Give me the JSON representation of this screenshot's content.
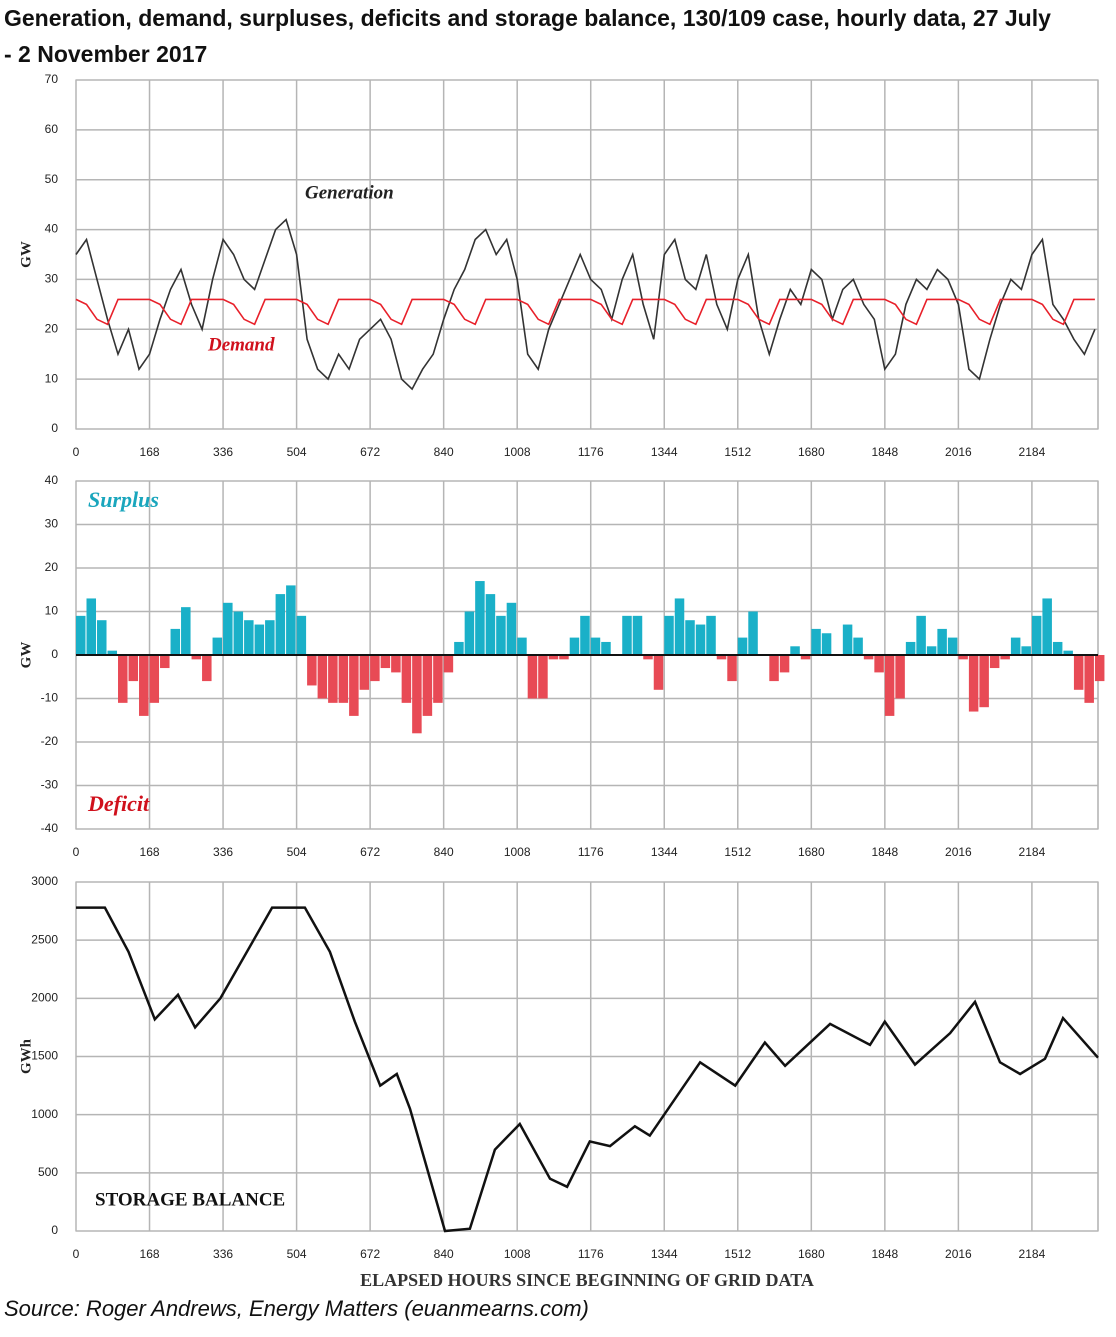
{
  "title": "Generation, demand, surpluses, deficits and storage balance, 130/109 case, hourly data, 27 July - 2 November 2017",
  "source": "Source: Roger Andrews, Energy Matters (euanmearns.com)",
  "chart_data": [
    {
      "type": "line",
      "ylabel": "GW",
      "annotations": [
        "Generation",
        "Demand"
      ],
      "xlim": [
        0,
        2335
      ],
      "xticks": [
        0,
        168,
        336,
        504,
        672,
        840,
        1008,
        1176,
        1344,
        1512,
        1680,
        1848,
        2016,
        2184
      ],
      "ylim": [
        0,
        70
      ],
      "yticks": [
        0,
        10,
        20,
        30,
        40,
        50,
        60,
        70
      ],
      "grid": true,
      "x": [
        0,
        24,
        48,
        72,
        96,
        120,
        144,
        168,
        192,
        216,
        240,
        264,
        288,
        312,
        336,
        360,
        384,
        408,
        432,
        456,
        480,
        504,
        528,
        552,
        576,
        600,
        624,
        648,
        672,
        696,
        720,
        744,
        768,
        792,
        816,
        840,
        864,
        888,
        912,
        936,
        960,
        984,
        1008,
        1032,
        1056,
        1080,
        1104,
        1128,
        1152,
        1176,
        1200,
        1224,
        1248,
        1272,
        1296,
        1320,
        1344,
        1368,
        1392,
        1416,
        1440,
        1464,
        1488,
        1512,
        1536,
        1560,
        1584,
        1608,
        1632,
        1656,
        1680,
        1704,
        1728,
        1752,
        1776,
        1800,
        1824,
        1848,
        1872,
        1896,
        1920,
        1944,
        1968,
        1992,
        2016,
        2040,
        2064,
        2088,
        2112,
        2136,
        2160,
        2184,
        2208,
        2232,
        2256,
        2280,
        2304,
        2328
      ],
      "series": [
        {
          "name": "Generation",
          "color": "#333333",
          "values": [
            35,
            38,
            30,
            22,
            15,
            20,
            12,
            15,
            22,
            28,
            32,
            25,
            20,
            30,
            38,
            35,
            30,
            28,
            34,
            40,
            42,
            35,
            18,
            12,
            10,
            15,
            12,
            18,
            20,
            22,
            18,
            10,
            8,
            12,
            15,
            22,
            28,
            32,
            38,
            40,
            35,
            38,
            30,
            15,
            12,
            20,
            25,
            30,
            35,
            30,
            28,
            22,
            30,
            35,
            25,
            18,
            35,
            38,
            30,
            28,
            35,
            25,
            20,
            30,
            35,
            22,
            15,
            22,
            28,
            25,
            32,
            30,
            22,
            28,
            30,
            25,
            22,
            12,
            15,
            25,
            30,
            28,
            32,
            30,
            25,
            12,
            10,
            18,
            25,
            30,
            28,
            35,
            38,
            25,
            22,
            18,
            15,
            20
          ]
        },
        {
          "name": "Demand",
          "color": "#e8202a",
          "values": [
            26,
            25,
            22,
            21,
            26,
            26,
            26,
            26,
            25,
            22,
            21,
            26,
            26,
            26,
            26,
            25,
            22,
            21,
            26,
            26,
            26,
            26,
            25,
            22,
            21,
            26,
            26,
            26,
            26,
            25,
            22,
            21,
            26,
            26,
            26,
            26,
            25,
            22,
            21,
            26,
            26,
            26,
            26,
            25,
            22,
            21,
            26,
            26,
            26,
            26,
            25,
            22,
            21,
            26,
            26,
            26,
            26,
            25,
            22,
            21,
            26,
            26,
            26,
            26,
            25,
            22,
            21,
            26,
            26,
            26,
            26,
            25,
            22,
            21,
            26,
            26,
            26,
            26,
            25,
            22,
            21,
            26,
            26,
            26,
            26,
            25,
            22,
            21,
            26,
            26,
            26,
            26,
            25,
            22,
            21,
            26,
            26,
            26
          ]
        }
      ]
    },
    {
      "type": "bar",
      "ylabel": "GW",
      "annotations": [
        "Surplus",
        "Deficit"
      ],
      "xlim": [
        0,
        2335
      ],
      "xticks": [
        0,
        168,
        336,
        504,
        672,
        840,
        1008,
        1176,
        1344,
        1512,
        1680,
        1848,
        2016,
        2184
      ],
      "ylim": [
        -40,
        40
      ],
      "yticks": [
        -40,
        -30,
        -20,
        -10,
        0,
        10,
        20,
        30,
        40
      ],
      "grid": true,
      "positive_color": "#1ab0c8",
      "negative_color": "#e84a55",
      "bar_width": 24,
      "x": [
        0,
        24,
        48,
        72,
        96,
        120,
        144,
        168,
        192,
        216,
        240,
        264,
        288,
        312,
        336,
        360,
        384,
        408,
        432,
        456,
        480,
        504,
        528,
        552,
        576,
        600,
        624,
        648,
        672,
        696,
        720,
        744,
        768,
        792,
        816,
        840,
        864,
        888,
        912,
        936,
        960,
        984,
        1008,
        1032,
        1056,
        1080,
        1104,
        1128,
        1152,
        1176,
        1200,
        1224,
        1248,
        1272,
        1296,
        1320,
        1344,
        1368,
        1392,
        1416,
        1440,
        1464,
        1488,
        1512,
        1536,
        1560,
        1584,
        1608,
        1632,
        1656,
        1680,
        1704,
        1728,
        1752,
        1776,
        1800,
        1824,
        1848,
        1872,
        1896,
        1920,
        1944,
        1968,
        1992,
        2016,
        2040,
        2064,
        2088,
        2112,
        2136,
        2160,
        2184,
        2208,
        2232,
        2256,
        2280,
        2304,
        2328
      ],
      "values": [
        9,
        13,
        8,
        1,
        -11,
        -6,
        -14,
        -11,
        -3,
        6,
        11,
        -1,
        -6,
        4,
        12,
        10,
        8,
        7,
        8,
        14,
        16,
        9,
        -7,
        -10,
        -11,
        -11,
        -14,
        -8,
        -6,
        -3,
        -4,
        -11,
        -18,
        -14,
        -11,
        -4,
        3,
        10,
        17,
        14,
        9,
        12,
        4,
        -10,
        -10,
        -1,
        -1,
        4,
        9,
        4,
        3,
        0,
        9,
        9,
        -1,
        -8,
        9,
        13,
        8,
        7,
        9,
        -1,
        -6,
        4,
        10,
        0,
        -6,
        -4,
        2,
        -1,
        6,
        5,
        0,
        7,
        4,
        -1,
        -4,
        -14,
        -10,
        3,
        9,
        2,
        6,
        4,
        -1,
        -13,
        -12,
        -3,
        -1,
        4,
        2,
        9,
        13,
        3,
        1,
        -8,
        -11,
        -6
      ]
    },
    {
      "type": "line",
      "ylabel": "GWh",
      "annotations": [
        "STORAGE BALANCE"
      ],
      "xlabel": "ELAPSED HOURS SINCE BEGINNING OF GRID DATA",
      "xlim": [
        0,
        2335
      ],
      "xticks": [
        0,
        168,
        336,
        504,
        672,
        840,
        1008,
        1176,
        1344,
        1512,
        1680,
        1848,
        2016,
        2184
      ],
      "ylim": [
        0,
        3000
      ],
      "yticks": [
        0,
        500,
        1000,
        1500,
        2000,
        2500,
        3000
      ],
      "grid": true,
      "x": [
        0,
        66,
        120,
        180,
        233,
        272,
        330,
        448,
        523,
        580,
        637,
        695,
        733,
        763,
        843,
        900,
        957,
        1014,
        1083,
        1122,
        1174,
        1220,
        1277,
        1311,
        1426,
        1506,
        1574,
        1620,
        1723,
        1814,
        1848,
        1917,
        1997,
        2054,
        2111,
        2157,
        2214,
        2255,
        2335
      ],
      "series": [
        {
          "name": "Storage balance",
          "color": "#111111",
          "values": [
            2780,
            2780,
            2400,
            1820,
            2030,
            1750,
            2000,
            2780,
            2780,
            2400,
            1800,
            1250,
            1350,
            1050,
            0,
            20,
            700,
            920,
            450,
            380,
            770,
            730,
            900,
            820,
            1450,
            1250,
            1620,
            1420,
            1780,
            1600,
            1800,
            1430,
            1700,
            1970,
            1450,
            1350,
            1480,
            1830,
            1490
          ]
        }
      ]
    }
  ]
}
